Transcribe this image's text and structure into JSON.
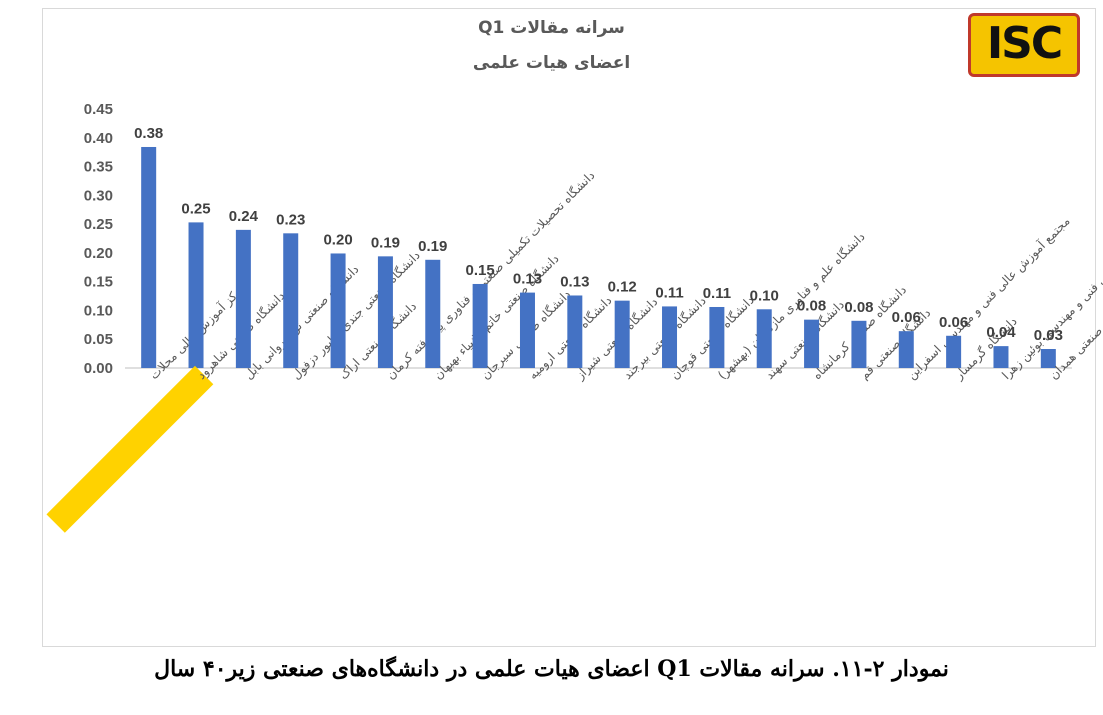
{
  "chart_data": {
    "type": "bar",
    "title": "سرانه مقالات Q1",
    "subtitle": "اعضای هیات علمی",
    "ylim": [
      0,
      0.45
    ],
    "yticks": [
      "0.00",
      "0.05",
      "0.10",
      "0.15",
      "0.20",
      "0.25",
      "0.30",
      "0.35",
      "0.40",
      "0.45"
    ],
    "grid": false,
    "bar_color": "#4472c4",
    "highlight_color": "#ffd200",
    "highlight_index": 1,
    "categories": [
      "مرکز آموزش عالی محلات",
      "دانشگاه صنعتی شاهرود",
      "دانشگاه صنعتی نوشیروانی بابل",
      "دانشگاه صنعتی جندی شاپور دزفول",
      "دانشگاه صنعتی اراک",
      "دانشگاه تحصیلات تکمیلی صنعتی و فناوری پیشرفته کرمان",
      "دانشگاه صنعتی خاتم الانبیاء بهبهان",
      "دانشگاه صنعتی سیرجان",
      "دانشگاه صنعتی ارومیه",
      "دانشگاه صنعتی شیراز",
      "دانشگاه صنعتی بیرجند",
      "دانشگاه صنعتی قوچان",
      "دانشگاه علم و فناوری مازندران (بهشهر)",
      "دانشگاه صنعتی سهند",
      "دانشگاه صنعتی کرمانشاه",
      "دانشگاه صنعتی قم",
      "مجتمع آموزش عالی فنی و مهندسی اسفراین",
      "دانشگاه گرمسار",
      "مرکز آموزش عالی فنی و مهندسی بوئین زهرا",
      "دانشگاه صنعتی همدان"
    ],
    "values": [
      0.384,
      0.253,
      0.24,
      0.234,
      0.199,
      0.194,
      0.188,
      0.146,
      0.131,
      0.126,
      0.117,
      0.107,
      0.106,
      0.102,
      0.084,
      0.082,
      0.064,
      0.056,
      0.038,
      0.033
    ],
    "labels": [
      "0.38",
      "0.25",
      "0.24",
      "0.23",
      "0.20",
      "0.19",
      "0.19",
      "0.15",
      "0.13",
      "0.13",
      "0.12",
      "0.11",
      "0.11",
      "0.10",
      "0.08",
      "0.08",
      "0.06",
      "0.06",
      "0.04",
      "0.03"
    ]
  },
  "logo": {
    "text": "ISC"
  },
  "caption": "نمودار ۲-۱۱. سرانه مقالات Q1 اعضای هیات علمی در دانشگاه‌های صنعتی زیر۴۰ سال"
}
